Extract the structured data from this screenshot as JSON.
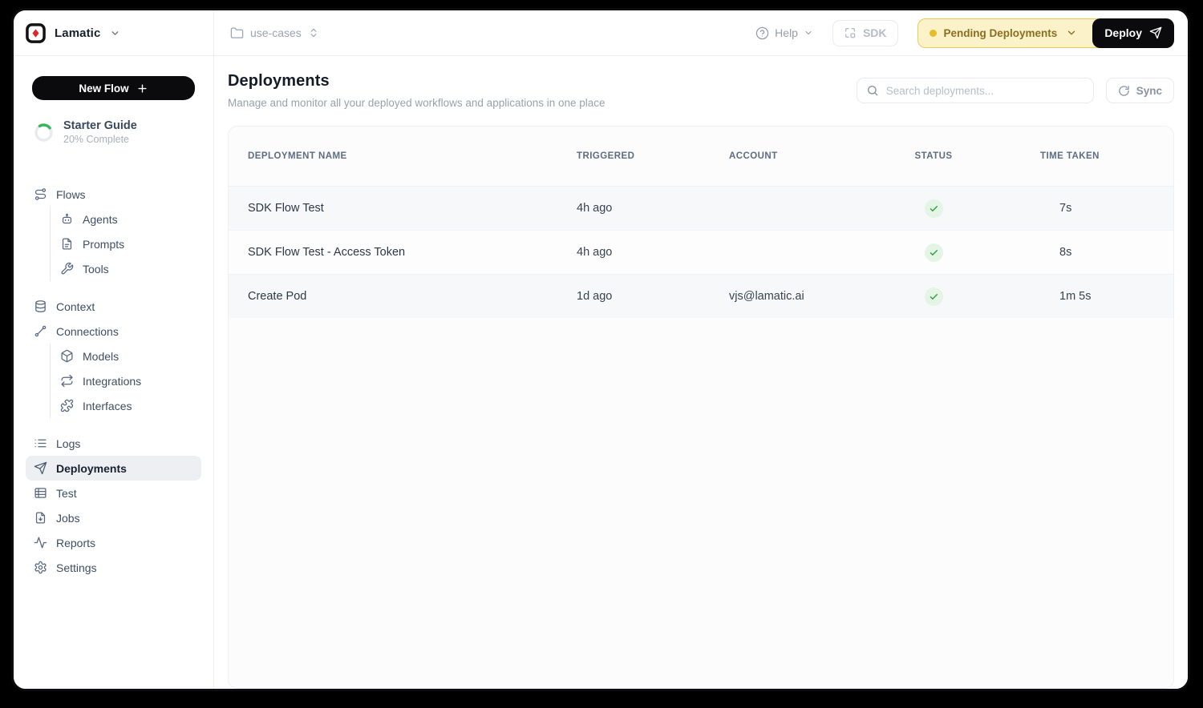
{
  "brand": {
    "name": "Lamatic"
  },
  "topbar": {
    "project": "use-cases",
    "help_label": "Help",
    "sdk_label": "SDK",
    "pending_label": "Pending Deployments",
    "deploy_label": "Deploy"
  },
  "sidebar": {
    "new_flow_label": "New Flow",
    "starter_guide": {
      "title": "Starter Guide",
      "subtitle": "20% Complete",
      "percent": 20
    },
    "items": [
      {
        "label": "Flows",
        "icon": "flows",
        "indent": 0
      },
      {
        "label": "Agents",
        "icon": "agent",
        "indent": 1
      },
      {
        "label": "Prompts",
        "icon": "prompt",
        "indent": 1
      },
      {
        "label": "Tools",
        "icon": "tools",
        "indent": 1
      },
      {
        "label": "Context",
        "icon": "context",
        "indent": 0,
        "gap": true
      },
      {
        "label": "Connections",
        "icon": "connections",
        "indent": 0
      },
      {
        "label": "Models",
        "icon": "models",
        "indent": 1
      },
      {
        "label": "Integrations",
        "icon": "integrations",
        "indent": 1
      },
      {
        "label": "Interfaces",
        "icon": "interfaces",
        "indent": 1
      },
      {
        "label": "Logs",
        "icon": "logs",
        "indent": 0,
        "gap": true
      },
      {
        "label": "Deployments",
        "icon": "deployments",
        "indent": 0,
        "active": true
      },
      {
        "label": "Test",
        "icon": "test",
        "indent": 0
      },
      {
        "label": "Jobs",
        "icon": "jobs",
        "indent": 0
      },
      {
        "label": "Reports",
        "icon": "reports",
        "indent": 0
      },
      {
        "label": "Settings",
        "icon": "settings",
        "indent": 0
      }
    ]
  },
  "main": {
    "title": "Deployments",
    "subtitle": "Manage and monitor all your deployed workflows and applications in one place",
    "search_placeholder": "Search deployments...",
    "sync_label": "Sync",
    "table": {
      "columns": [
        "DEPLOYMENT NAME",
        "TRIGGERED",
        "ACCOUNT",
        "STATUS",
        "TIME TAKEN"
      ],
      "rows": [
        {
          "name": "SDK Flow Test",
          "triggered": "4h ago",
          "account": "",
          "status": "success",
          "time": "7s"
        },
        {
          "name": "SDK Flow Test - Access Token",
          "triggered": "4h ago",
          "account": "",
          "status": "success",
          "time": "8s"
        },
        {
          "name": "Create Pod",
          "triggered": "1d ago",
          "account": "vjs@lamatic.ai",
          "status": "success",
          "time": "1m 5s"
        }
      ]
    }
  },
  "colors": {
    "brand_black": "#0b0b0e",
    "pending_bg": "#fbf2ca",
    "pending_border": "#e9cb55",
    "pending_text": "#8b6e20",
    "pending_dot": "#e7bd25",
    "success_bg": "#e4f4e5",
    "success_check": "#2f9e44",
    "progress_green": "#34b75a",
    "active_item_bg": "#edeff2",
    "logo_diamond_red": "#e0262c"
  }
}
